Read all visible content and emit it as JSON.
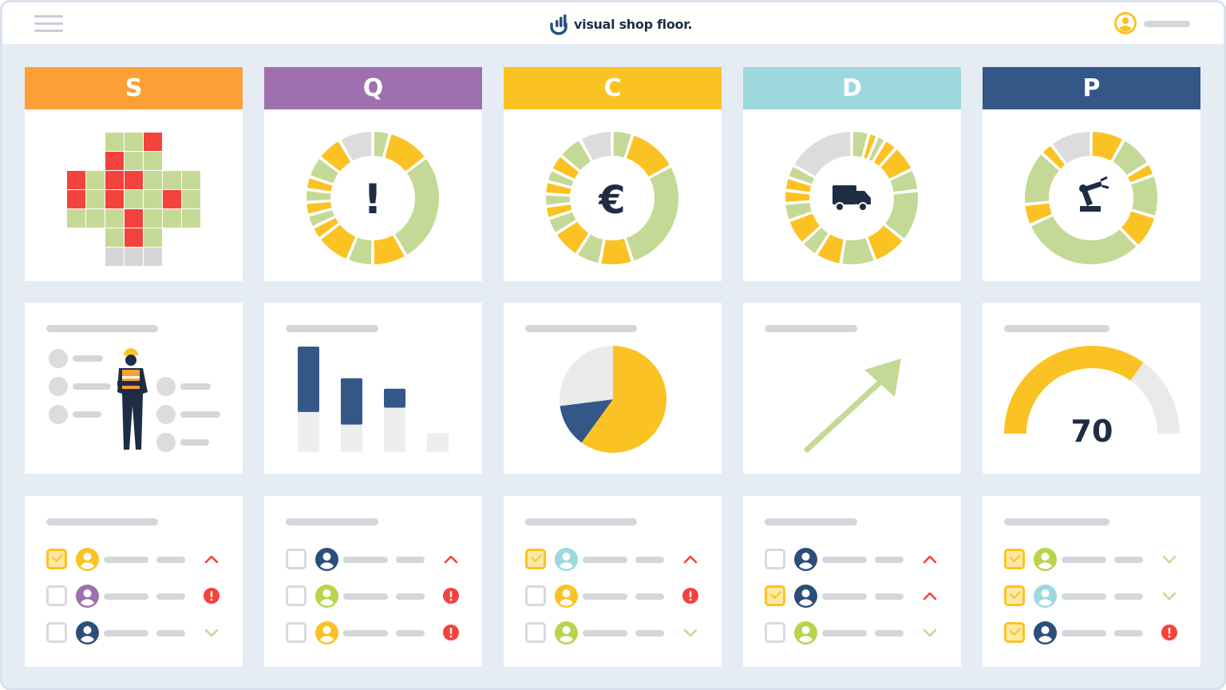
{
  "app": {
    "name": "visual shop floor."
  },
  "colors": {
    "S": "#fc9f34",
    "Q": "#9f70ae",
    "C": "#fbc223",
    "D": "#9dd8de",
    "P": "#335887",
    "green": "#c5d996",
    "red": "#f4423c",
    "gray": "#dcdcdc",
    "navy": "#2b4f7a"
  },
  "columns": [
    {
      "letter": "S",
      "icon": "safety-cross-grid"
    },
    {
      "letter": "Q",
      "icon": "exclamation-icon"
    },
    {
      "letter": "C",
      "icon": "euro-icon"
    },
    {
      "letter": "D",
      "icon": "truck-icon"
    },
    {
      "letter": "P",
      "icon": "robot-arm-icon"
    }
  ],
  "gauge": {
    "value": "70",
    "fraction": 0.7
  },
  "pie": {
    "yellow": 0.6,
    "navy": 0.13,
    "gray": 0.27
  },
  "bars": {
    "filled": [
      0.62,
      0.44,
      0.18,
      0
    ],
    "track": [
      1,
      0.7,
      0.6,
      0.18
    ]
  },
  "actions": [
    [
      {
        "checked": true,
        "avatar": "#fbc223",
        "status": "up"
      },
      {
        "checked": false,
        "avatar": "#9f70ae",
        "status": "alert"
      },
      {
        "checked": false,
        "avatar": "#2b4f7a",
        "status": "down"
      }
    ],
    [
      {
        "checked": false,
        "avatar": "#2b4f7a",
        "status": "up"
      },
      {
        "checked": false,
        "avatar": "#b8d44a",
        "status": "alert"
      },
      {
        "checked": false,
        "avatar": "#fbc223",
        "status": "alert"
      }
    ],
    [
      {
        "checked": true,
        "avatar": "#9dd8de",
        "status": "up"
      },
      {
        "checked": false,
        "avatar": "#fbc223",
        "status": "alert"
      },
      {
        "checked": false,
        "avatar": "#b8d44a",
        "status": "down"
      }
    ],
    [
      {
        "checked": false,
        "avatar": "#2b4f7a",
        "status": "up"
      },
      {
        "checked": true,
        "avatar": "#2b4f7a",
        "status": "up"
      },
      {
        "checked": false,
        "avatar": "#b8d44a",
        "status": "down"
      }
    ],
    [
      {
        "checked": true,
        "avatar": "#b8d44a",
        "status": "down"
      },
      {
        "checked": true,
        "avatar": "#9dd8de",
        "status": "down"
      },
      {
        "checked": true,
        "avatar": "#2b4f7a",
        "status": "alert"
      }
    ]
  ]
}
